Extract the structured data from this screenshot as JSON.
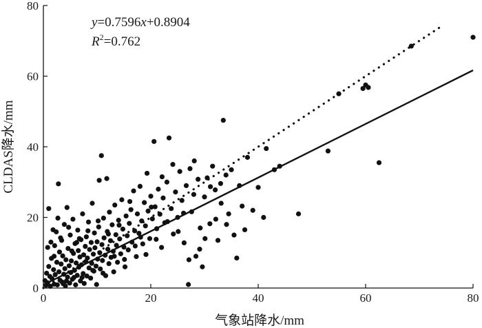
{
  "chart_data": {
    "type": "scatter",
    "xlabel": "气象站降水/mm",
    "ylabel": "CLDAS降水/mm",
    "xlim": [
      0,
      80
    ],
    "ylim": [
      0,
      80
    ],
    "xticks": [
      0,
      20,
      40,
      60,
      80
    ],
    "yticks": [
      0,
      20,
      40,
      60,
      80
    ],
    "xtick_labels": [
      "0",
      "20",
      "40",
      "60",
      "80"
    ],
    "ytick_labels": [
      "0",
      "20",
      "40",
      "60",
      "80"
    ],
    "grid": false,
    "annotation": {
      "equation_y": "y",
      "equation_eq": "=0.7596",
      "equation_x": "x",
      "equation_rest": "+0.8904",
      "r2_r": "R",
      "r2_sup": "2",
      "r2_val": "=0.762"
    },
    "fit_line": {
      "slope": 0.7596,
      "intercept": 0.8904,
      "x_range": [
        0,
        80
      ],
      "style": "solid"
    },
    "identity_line": {
      "slope": 1,
      "intercept": 0,
      "x_range": [
        0,
        74.5
      ],
      "style": "dotted"
    },
    "points": [
      [
        0.3,
        2.1
      ],
      [
        0.5,
        0.8
      ],
      [
        0.6,
        4.2
      ],
      [
        0.8,
        1.5
      ],
      [
        1.0,
        22.5
      ],
      [
        1.0,
        6.1
      ],
      [
        1.2,
        3.3
      ],
      [
        1.3,
        0.5
      ],
      [
        1.5,
        8.4
      ],
      [
        1.6,
        2.7
      ],
      [
        1.8,
        16.5
      ],
      [
        1.9,
        5.2
      ],
      [
        2.0,
        1.1
      ],
      [
        2.1,
        12.0
      ],
      [
        2.2,
        3.8
      ],
      [
        2.4,
        15.9
      ],
      [
        2.5,
        7.3
      ],
      [
        2.6,
        0.9
      ],
      [
        2.8,
        29.5
      ],
      [
        2.9,
        4.6
      ],
      [
        3.0,
        10.2
      ],
      [
        3.1,
        2.2
      ],
      [
        3.3,
        6.8
      ],
      [
        3.4,
        13.5
      ],
      [
        3.5,
        1.7
      ],
      [
        3.6,
        9.1
      ],
      [
        3.8,
        3.9
      ],
      [
        3.9,
        18.0
      ],
      [
        4.0,
        5.5
      ],
      [
        4.1,
        0.6
      ],
      [
        4.2,
        8.0
      ],
      [
        4.4,
        22.8
      ],
      [
        4.5,
        3.1
      ],
      [
        4.6,
        11.2
      ],
      [
        4.8,
        6.3
      ],
      [
        4.9,
        1.4
      ],
      [
        5.0,
        15.0
      ],
      [
        5.1,
        4.4
      ],
      [
        5.2,
        7.7
      ],
      [
        5.4,
        2.5
      ],
      [
        5.5,
        19.5
      ],
      [
        5.6,
        9.8
      ],
      [
        5.8,
        5.0
      ],
      [
        5.9,
        12.6
      ],
      [
        6.0,
        0.9
      ],
      [
        6.1,
        7.1
      ],
      [
        6.3,
        3.6
      ],
      [
        6.4,
        16.4
      ],
      [
        6.5,
        10.6
      ],
      [
        6.6,
        5.9
      ],
      [
        6.8,
        8.8
      ],
      [
        6.9,
        2.0
      ],
      [
        7.0,
        13.7
      ],
      [
        7.1,
        6.6
      ],
      [
        7.3,
        21.0
      ],
      [
        7.4,
        4.1
      ],
      [
        7.5,
        9.4
      ],
      [
        7.6,
        1.3
      ],
      [
        7.8,
        11.8
      ],
      [
        7.9,
        7.5
      ],
      [
        8.0,
        14.5
      ],
      [
        8.1,
        3.4
      ],
      [
        8.2,
        8.5
      ],
      [
        8.4,
        18.7
      ],
      [
        8.5,
        5.7
      ],
      [
        8.6,
        10.9
      ],
      [
        8.8,
        2.8
      ],
      [
        8.9,
        12.9
      ],
      [
        9.0,
        7.0
      ],
      [
        9.1,
        24.0
      ],
      [
        9.3,
        9.6
      ],
      [
        9.4,
        4.8
      ],
      [
        9.5,
        15.6
      ],
      [
        9.6,
        11.4
      ],
      [
        9.8,
        6.2
      ],
      [
        9.9,
        1.0
      ],
      [
        10.0,
        13.1
      ],
      [
        10.1,
        8.2
      ],
      [
        10.3,
        17.3
      ],
      [
        10.4,
        30.5
      ],
      [
        10.5,
        10.0
      ],
      [
        10.6,
        5.4
      ],
      [
        10.8,
        37.5
      ],
      [
        10.9,
        12.3
      ],
      [
        11.0,
        7.8
      ],
      [
        11.2,
        19.8
      ],
      [
        11.3,
        14.2
      ],
      [
        11.5,
        9.3
      ],
      [
        11.6,
        3.5
      ],
      [
        11.8,
        31.0
      ],
      [
        11.9,
        16.0
      ],
      [
        12.0,
        11.0
      ],
      [
        12.2,
        6.9
      ],
      [
        12.3,
        21.5
      ],
      [
        12.5,
        13.4
      ],
      [
        12.6,
        8.7
      ],
      [
        12.8,
        17.9
      ],
      [
        13.0,
        10.4
      ],
      [
        13.1,
        4.6
      ],
      [
        13.3,
        23.5
      ],
      [
        13.5,
        15.1
      ],
      [
        13.6,
        12.1
      ],
      [
        13.8,
        7.3
      ],
      [
        14.0,
        19.2
      ],
      [
        14.2,
        13.9
      ],
      [
        14.4,
        9.7
      ],
      [
        14.6,
        25.0
      ],
      [
        14.8,
        16.7
      ],
      [
        15.0,
        11.6
      ],
      [
        15.2,
        6.0
      ],
      [
        15.4,
        20.4
      ],
      [
        15.6,
        14.8
      ],
      [
        15.8,
        10.8
      ],
      [
        16.0,
        18.3
      ],
      [
        16.3,
        22.2
      ],
      [
        16.5,
        13.0
      ],
      [
        16.8,
        27.5
      ],
      [
        17.0,
        16.2
      ],
      [
        17.3,
        8.9
      ],
      [
        17.5,
        21.0
      ],
      [
        17.8,
        15.5
      ],
      [
        18.0,
        28.8
      ],
      [
        18.3,
        19.0
      ],
      [
        18.5,
        12.5
      ],
      [
        18.8,
        24.2
      ],
      [
        19.0,
        17.6
      ],
      [
        19.3,
        32.5
      ],
      [
        19.5,
        21.8
      ],
      [
        19.8,
        14.0
      ],
      [
        20.0,
        26.0
      ],
      [
        20.3,
        19.6
      ],
      [
        20.6,
        41.5
      ],
      [
        20.8,
        23.0
      ],
      [
        21.1,
        16.8
      ],
      [
        21.4,
        28.0
      ],
      [
        21.7,
        20.9
      ],
      [
        22.0,
        11.5
      ],
      [
        22.3,
        25.5
      ],
      [
        22.6,
        18.5
      ],
      [
        23.0,
        30.0
      ],
      [
        23.4,
        42.5
      ],
      [
        23.8,
        22.5
      ],
      [
        24.2,
        15.3
      ],
      [
        24.6,
        27.2
      ],
      [
        25.0,
        20.0
      ],
      [
        25.4,
        33.0
      ],
      [
        25.8,
        24.8
      ],
      [
        26.2,
        12.8
      ],
      [
        26.6,
        29.0
      ],
      [
        27.0,
        1.0
      ],
      [
        27.3,
        33.8
      ],
      [
        27.6,
        21.6
      ],
      [
        28.0,
        26.5
      ],
      [
        28.4,
        9.0
      ],
      [
        28.8,
        30.8
      ],
      [
        29.2,
        17.0
      ],
      [
        29.6,
        6.0
      ],
      [
        30.0,
        25.8
      ],
      [
        30.5,
        31.2
      ],
      [
        31.0,
        18.2
      ],
      [
        31.5,
        34.5
      ],
      [
        32.0,
        27.8
      ],
      [
        32.5,
        13.5
      ],
      [
        33.0,
        29.6
      ],
      [
        33.5,
        47.5
      ],
      [
        34.0,
        32.0
      ],
      [
        34.5,
        21.0
      ],
      [
        35.0,
        33.5
      ],
      [
        35.5,
        15.0
      ],
      [
        36.0,
        8.5
      ],
      [
        36.5,
        29.0
      ],
      [
        37.0,
        23.2
      ],
      [
        37.5,
        16.5
      ],
      [
        38.0,
        37.0
      ],
      [
        39.0,
        22.0
      ],
      [
        40.0,
        28.5
      ],
      [
        41.0,
        20.0
      ],
      [
        41.5,
        39.5
      ],
      [
        43.0,
        33.5
      ],
      [
        44.0,
        34.5
      ],
      [
        47.5,
        21.0
      ],
      [
        53.0,
        38.8
      ],
      [
        55.0,
        55.0
      ],
      [
        59.5,
        56.5
      ],
      [
        60.0,
        57.5
      ],
      [
        60.5,
        56.8
      ],
      [
        62.5,
        35.5
      ],
      [
        68.5,
        68.5
      ],
      [
        80.0,
        71.0
      ],
      [
        2.0,
        9.0
      ],
      [
        3.2,
        14.2
      ],
      [
        4.3,
        2.0
      ],
      [
        5.3,
        10.5
      ],
      [
        6.2,
        12.9
      ],
      [
        7.2,
        3.0
      ],
      [
        8.3,
        16.2
      ],
      [
        9.2,
        5.0
      ],
      [
        10.2,
        19.0
      ],
      [
        11.1,
        4.2
      ],
      [
        12.1,
        15.3
      ],
      [
        13.2,
        9.0
      ],
      [
        14.1,
        17.8
      ],
      [
        15.1,
        8.1
      ],
      [
        16.1,
        24.5
      ],
      [
        17.1,
        11.9
      ],
      [
        18.1,
        14.4
      ],
      [
        19.1,
        9.5
      ],
      [
        20.1,
        22.9
      ],
      [
        21.0,
        13.8
      ],
      [
        22.1,
        31.5
      ],
      [
        23.1,
        18.8
      ],
      [
        24.1,
        35.0
      ],
      [
        25.1,
        16.0
      ],
      [
        26.1,
        21.2
      ],
      [
        27.1,
        8.0
      ],
      [
        28.1,
        36.0
      ],
      [
        29.1,
        11.0
      ],
      [
        30.1,
        14.0
      ],
      [
        31.1,
        28.7
      ],
      [
        32.1,
        19.5
      ],
      [
        33.1,
        24.0
      ],
      [
        34.1,
        18.0
      ],
      [
        0.8,
        11.5
      ],
      [
        1.4,
        13.0
      ],
      [
        2.7,
        19.8
      ],
      [
        3.7,
        1.2
      ],
      [
        4.7,
        17.2
      ],
      [
        5.7,
        3.0
      ],
      [
        6.7,
        14.0
      ]
    ]
  }
}
